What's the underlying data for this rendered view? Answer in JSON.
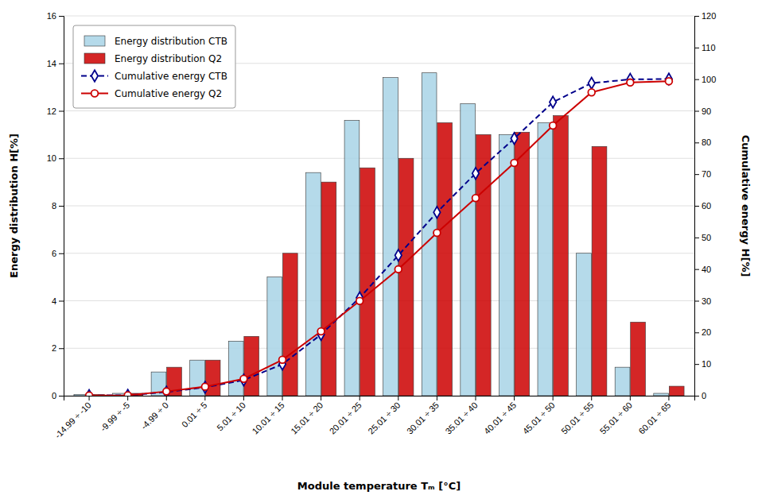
{
  "chart_data": {
    "type": "bar",
    "xlabel": "Module temperature Tₘ [°C]",
    "ylabel": "Energy distribution H[%]",
    "y2label": "Cumulative energy H[%]",
    "categories": [
      "-14.99 ÷ -10",
      "-9.99 ÷ -5",
      "-4.99 ÷ 0",
      "0.01 ÷ 5",
      "5.01 ÷ 10",
      "10.01 ÷ 15",
      "15.01 ÷ 20",
      "20.01 ÷ 25",
      "25.01 ÷ 30",
      "30.01 ÷ 35",
      "35.01 ÷ 40",
      "40.01 ÷ 45",
      "45.01 ÷ 50",
      "50.01 ÷ 55",
      "55.01 ÷ 60",
      "60.01 ÷ 65"
    ],
    "series": [
      {
        "name": "Energy distribution CTB",
        "type": "bar",
        "color": "#a8d4e6",
        "values": [
          0.05,
          0.1,
          1.0,
          1.5,
          2.3,
          5.0,
          9.4,
          11.6,
          13.4,
          13.6,
          12.3,
          11.0,
          11.5,
          6.0,
          1.2,
          0.1
        ]
      },
      {
        "name": "Energy distribution Q2",
        "type": "bar",
        "color": "#cc0000",
        "values": [
          0.05,
          0.1,
          1.2,
          1.5,
          2.5,
          6.0,
          9.0,
          9.6,
          10.0,
          11.5,
          11.0,
          11.1,
          11.8,
          10.5,
          3.1,
          0.4
        ]
      },
      {
        "name": "Cumulative energy CTB",
        "type": "line",
        "axis": "y2",
        "color": "#00008B",
        "marker": "diamond",
        "line_style": "dashed",
        "values": [
          0.05,
          0.15,
          1.15,
          2.65,
          4.95,
          9.95,
          19.35,
          30.95,
          44.35,
          57.95,
          70.25,
          81.25,
          92.75,
          98.75,
          99.95,
          100.05
        ]
      },
      {
        "name": "Cumulative energy Q2",
        "type": "line",
        "axis": "y2",
        "color": "#cc0000",
        "marker": "circle",
        "line_style": "solid",
        "values": [
          0.05,
          0.15,
          1.35,
          2.85,
          5.35,
          11.35,
          20.35,
          29.95,
          39.95,
          51.45,
          62.45,
          73.55,
          85.35,
          95.85,
          98.95,
          99.35
        ]
      }
    ],
    "ylim": [
      0,
      16
    ],
    "yticks": [
      0,
      2,
      4,
      6,
      8,
      10,
      12,
      14,
      16
    ],
    "y2lim": [
      0,
      120
    ],
    "y2ticks": [
      0,
      10,
      20,
      30,
      40,
      50,
      60,
      70,
      80,
      90,
      100,
      110,
      120
    ],
    "grid": true,
    "legend": "upper left"
  }
}
